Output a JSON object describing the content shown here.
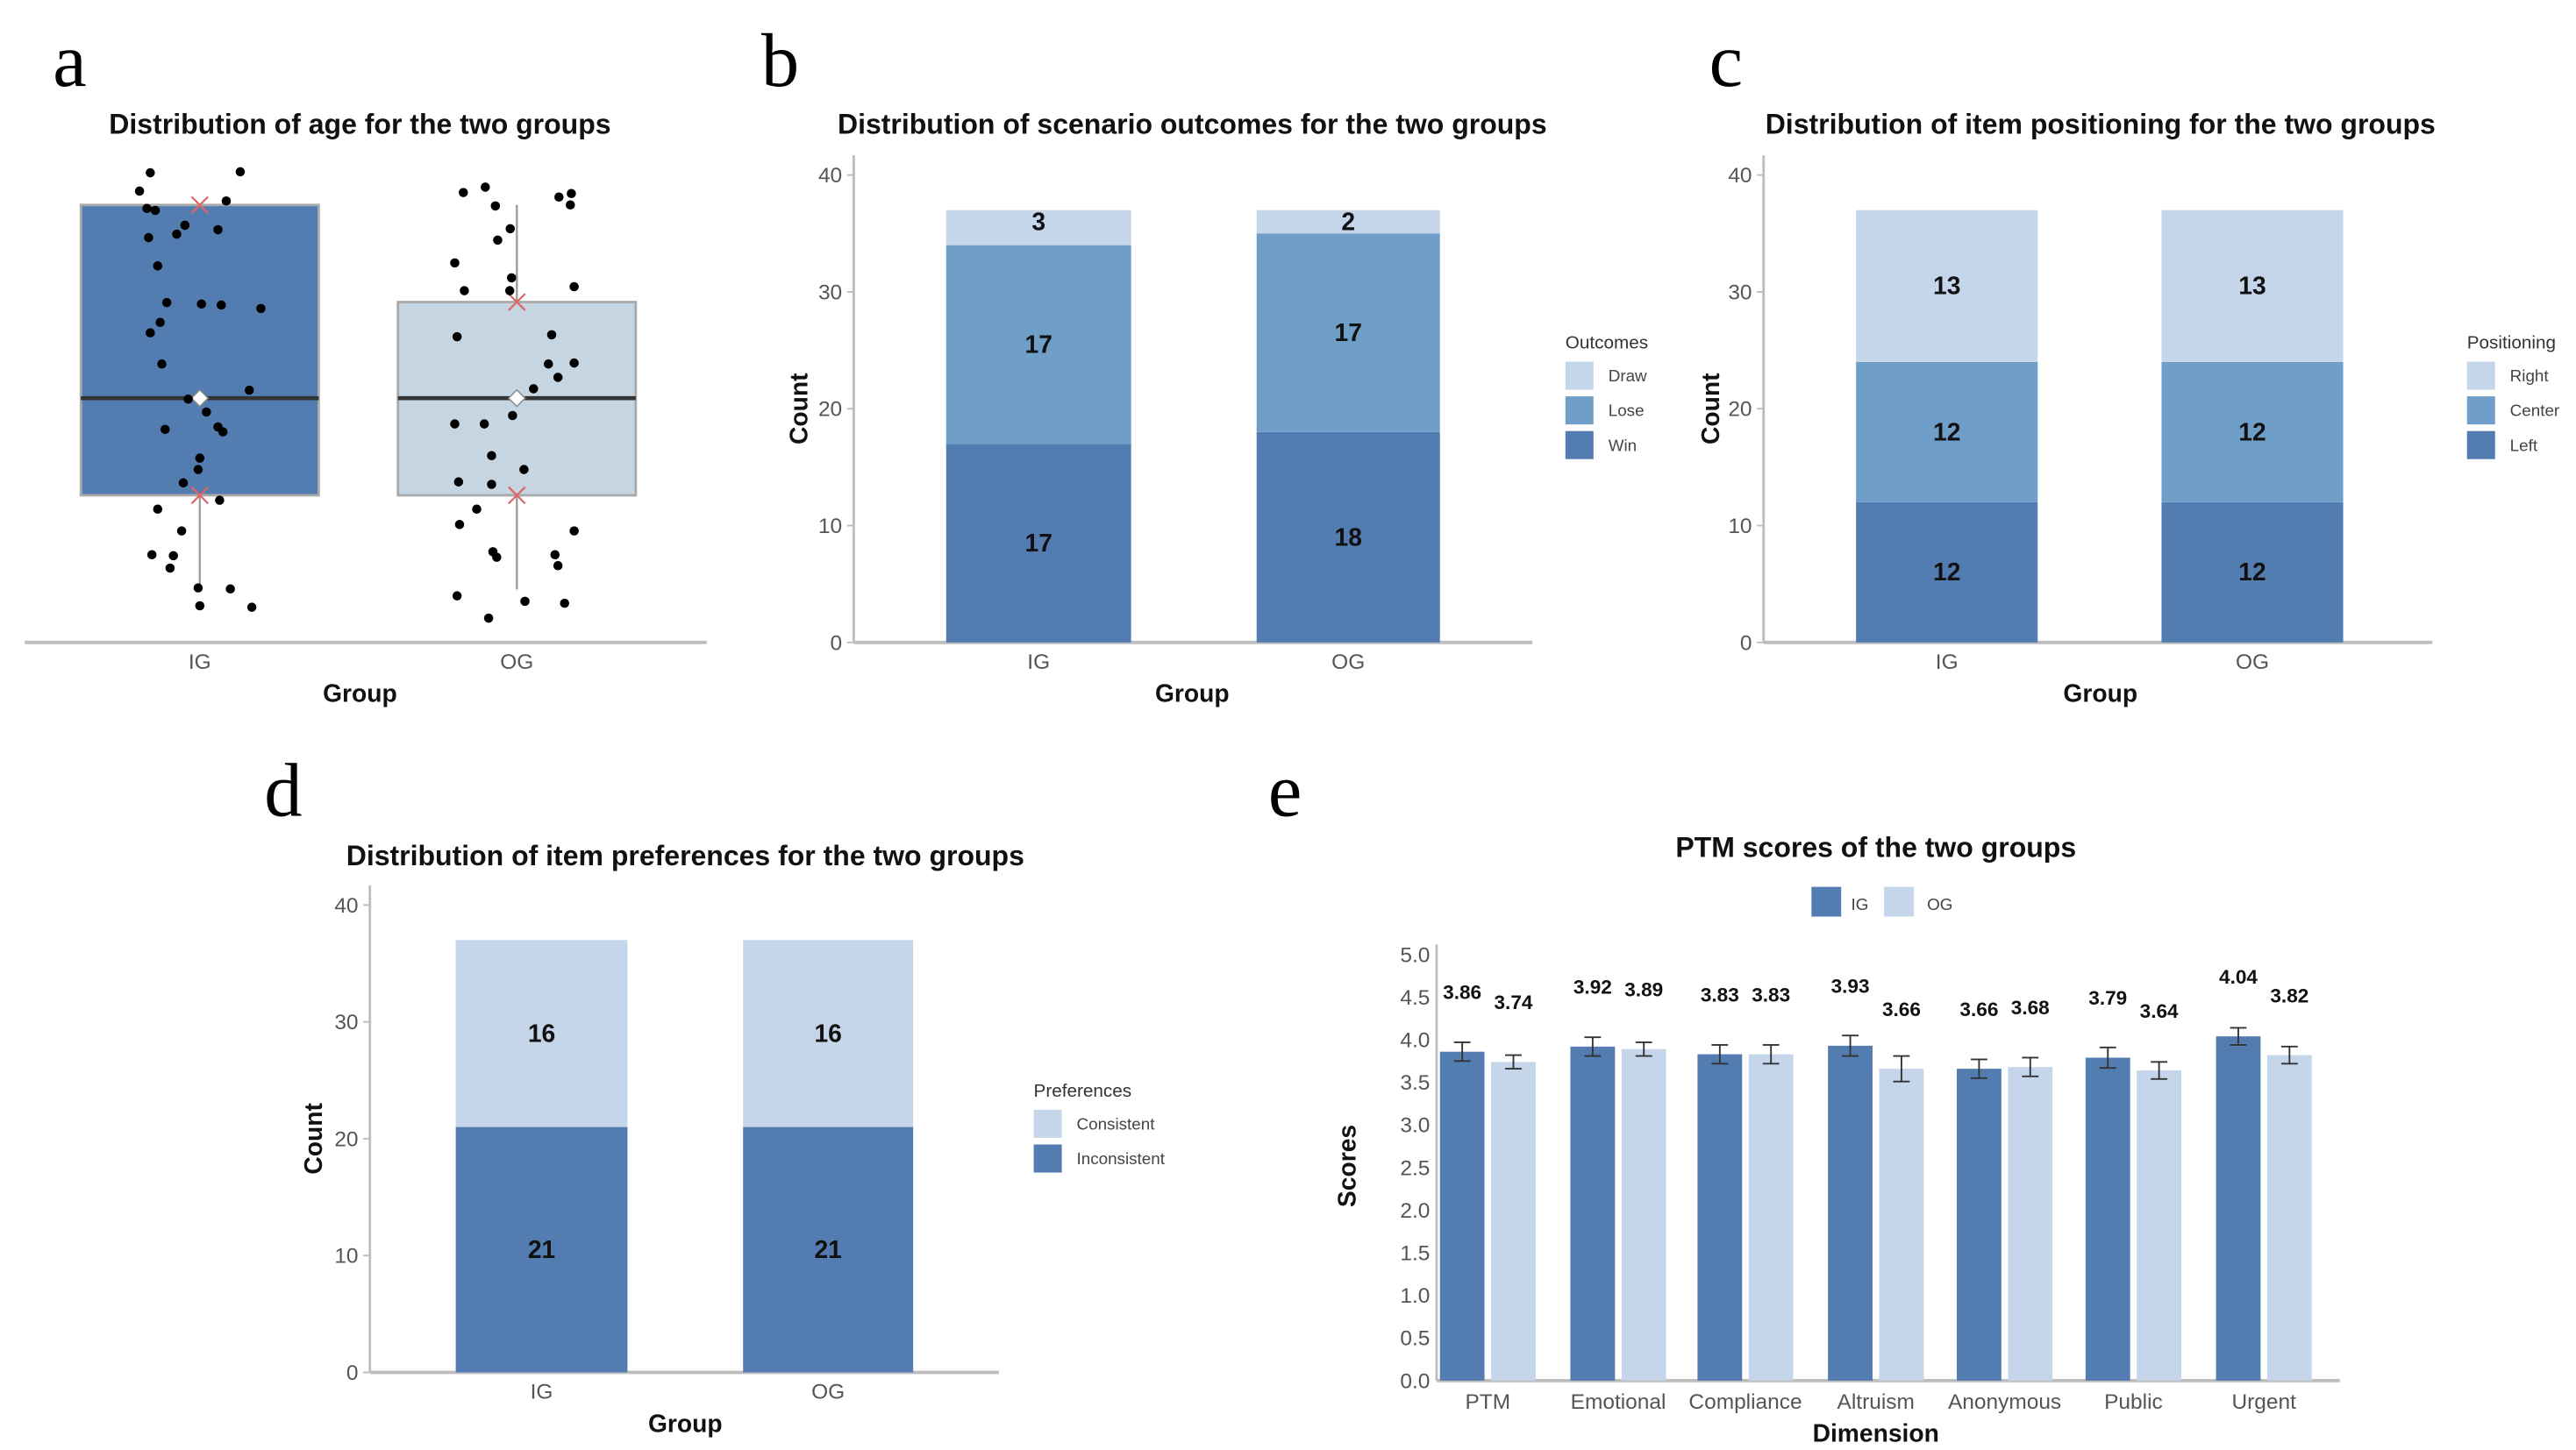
{
  "colors": {
    "dark": "#537cb1",
    "mid": "#6f9ec9",
    "light": "#c5d6ea",
    "box_light": "#c6d5e2",
    "axis": "#bdbdbd",
    "mean_x": "#e06666"
  },
  "panels": {
    "a": "a",
    "b": "b",
    "c": "c",
    "d": "d",
    "e": "e"
  },
  "chart_data": [
    {
      "id": "a",
      "type": "box",
      "title": "Distribution of age for the two groups",
      "xlabel": "Group",
      "ylabel": "",
      "categories": [
        "IG",
        "OG"
      ],
      "value_scale_note": "relative units, no y axis shown",
      "ylim": [
        0,
        100
      ],
      "boxes": [
        {
          "group": "IG",
          "q1": 29.7,
          "median": 49.3,
          "q3": 88.3,
          "whisker_low": 10.7,
          "whisker_high": 88.3,
          "mean": 49.3,
          "mean_minus_sd": 29.7,
          "mean_plus_sd": 88.3
        },
        {
          "group": "OG",
          "q1": 29.7,
          "median": 49.3,
          "q3": 68.7,
          "whisker_low": 10.7,
          "whisker_high": 88.3,
          "mean": 49.3,
          "mean_minus_sd": 29.7,
          "mean_plus_sd": 68.7
        }
      ],
      "points": {
        "IG": [
          94.8,
          95.0,
          91.1,
          89.1,
          87.6,
          87.2,
          84.2,
          82.4,
          83.3,
          81.7,
          76.0,
          68.6,
          68.3,
          68.1,
          67.4,
          64.6,
          62.5,
          56.2,
          50.9,
          49.1,
          46.5,
          43.0,
          43.5,
          42.5,
          37.2,
          34.9,
          32.2,
          28.7,
          26.9,
          22.5,
          17.7,
          17.5,
          15.0,
          11.0,
          10.8,
          7.4,
          7.1
        ],
        "OG": [
          90.8,
          91.9,
          89.9,
          90.6,
          88.3,
          88.1,
          83.5,
          81.2,
          76.6,
          73.6,
          71.0,
          71.0,
          71.8,
          61.7,
          62.1,
          56.2,
          56.4,
          53.5,
          51.2,
          45.8,
          44.1,
          44.1,
          37.7,
          34.9,
          32.4,
          31.9,
          26.9,
          23.8,
          22.5,
          18.3,
          17.2,
          17.7,
          15.5,
          9.4,
          8.3,
          7.9,
          4.9
        ]
      }
    },
    {
      "id": "b",
      "type": "bar",
      "stacked": true,
      "title": "Distribution of scenario outcomes for the two groups",
      "xlabel": "Group",
      "ylabel": "Count",
      "ylim": [
        0,
        40
      ],
      "yticks": [
        0,
        10,
        20,
        30,
        40
      ],
      "categories": [
        "IG",
        "OG"
      ],
      "legend_title": "Outcomes",
      "legend_position": "right",
      "legend": [
        "Draw",
        "Lose",
        "Win"
      ],
      "series": [
        {
          "name": "Win",
          "values": [
            17,
            18
          ],
          "color": "dark"
        },
        {
          "name": "Lose",
          "values": [
            17,
            17
          ],
          "color": "mid"
        },
        {
          "name": "Draw",
          "values": [
            3,
            2
          ],
          "color": "light"
        }
      ]
    },
    {
      "id": "c",
      "type": "bar",
      "stacked": true,
      "title": "Distribution of item positioning for the two groups",
      "xlabel": "Group",
      "ylabel": "Count",
      "ylim": [
        0,
        40
      ],
      "yticks": [
        0,
        10,
        20,
        30,
        40
      ],
      "categories": [
        "IG",
        "OG"
      ],
      "legend_title": "Positioning",
      "legend_position": "right",
      "legend": [
        "Right",
        "Center",
        "Left"
      ],
      "series": [
        {
          "name": "Left",
          "values": [
            12,
            12
          ],
          "color": "dark"
        },
        {
          "name": "Center",
          "values": [
            12,
            12
          ],
          "color": "mid"
        },
        {
          "name": "Right",
          "values": [
            13,
            13
          ],
          "color": "light"
        }
      ]
    },
    {
      "id": "d",
      "type": "bar",
      "stacked": true,
      "title": "Distribution of item preferences for the two groups",
      "xlabel": "Group",
      "ylabel": "Count",
      "ylim": [
        0,
        40
      ],
      "yticks": [
        0,
        10,
        20,
        30,
        40
      ],
      "categories": [
        "IG",
        "OG"
      ],
      "legend_title": "Preferences",
      "legend_position": "right",
      "legend": [
        "Consistent",
        "Inconsistent"
      ],
      "series": [
        {
          "name": "Inconsistent",
          "values": [
            21,
            21
          ],
          "color": "dark"
        },
        {
          "name": "Consistent",
          "values": [
            16,
            16
          ],
          "color": "light"
        }
      ]
    },
    {
      "id": "e",
      "type": "bar",
      "stacked": false,
      "title": "PTM scores of the two groups",
      "xlabel": "Dimension",
      "ylabel": "Scores",
      "ylim": [
        0,
        5
      ],
      "yticks": [
        "0.0",
        "0.5",
        "1.0",
        "1.5",
        "2.0",
        "2.5",
        "3.0",
        "3.5",
        "4.0",
        "4.5",
        "5.0"
      ],
      "categories": [
        "PTM",
        "Emotional",
        "Compliance",
        "Altruism",
        "Anonymous",
        "Public",
        "Urgent"
      ],
      "legend": [
        "IG",
        "OG"
      ],
      "legend_position": "top",
      "series": [
        {
          "name": "IG",
          "color": "dark",
          "values": [
            3.86,
            3.92,
            3.83,
            3.93,
            3.66,
            3.79,
            4.04
          ],
          "labels": [
            "3.86",
            "3.92",
            "3.83",
            "3.93",
            "3.66",
            "3.79",
            "4.04"
          ],
          "error": [
            0.11,
            0.11,
            0.11,
            0.12,
            0.11,
            0.12,
            0.1
          ]
        },
        {
          "name": "OG",
          "color": "light",
          "values": [
            3.74,
            3.89,
            3.83,
            3.66,
            3.68,
            3.64,
            3.82
          ],
          "labels": [
            "3.74",
            "3.89",
            "3.83",
            "3.66",
            "3.68",
            "3.64",
            "3.82"
          ],
          "error": [
            0.08,
            0.08,
            0.11,
            0.15,
            0.11,
            0.1,
            0.1
          ]
        }
      ]
    }
  ]
}
